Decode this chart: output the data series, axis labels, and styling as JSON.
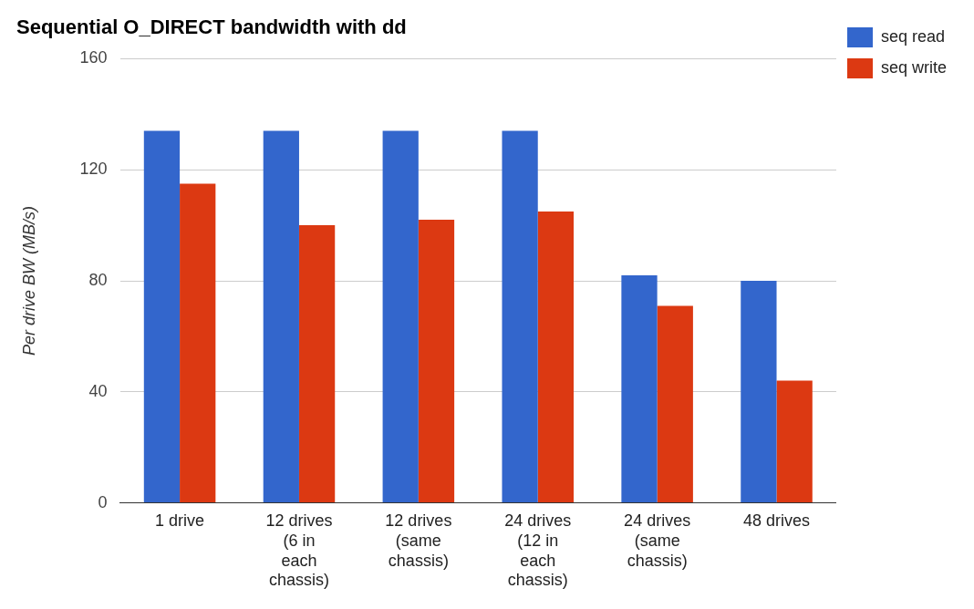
{
  "chart_data": {
    "type": "bar",
    "title": "Sequential O_DIRECT bandwidth with dd",
    "ylabel": "Per drive BW (MB/s)",
    "categories": [
      "1 drive",
      "12 drives (6 in each chassis)",
      "12 drives (same chassis)",
      "24 drives (12 in each chassis)",
      "24 drives (same chassis)",
      "48 drives"
    ],
    "series": [
      {
        "name": "seq read",
        "color": "#3366cc",
        "values": [
          134,
          134,
          134,
          134,
          82,
          80
        ]
      },
      {
        "name": "seq write",
        "color": "#dc3912",
        "values": [
          115,
          100,
          102,
          105,
          71,
          44
        ]
      }
    ],
    "ylim": [
      0,
      160
    ],
    "yticks": [
      0,
      40,
      80,
      120,
      160
    ],
    "grid": "y",
    "legend": "top right"
  }
}
